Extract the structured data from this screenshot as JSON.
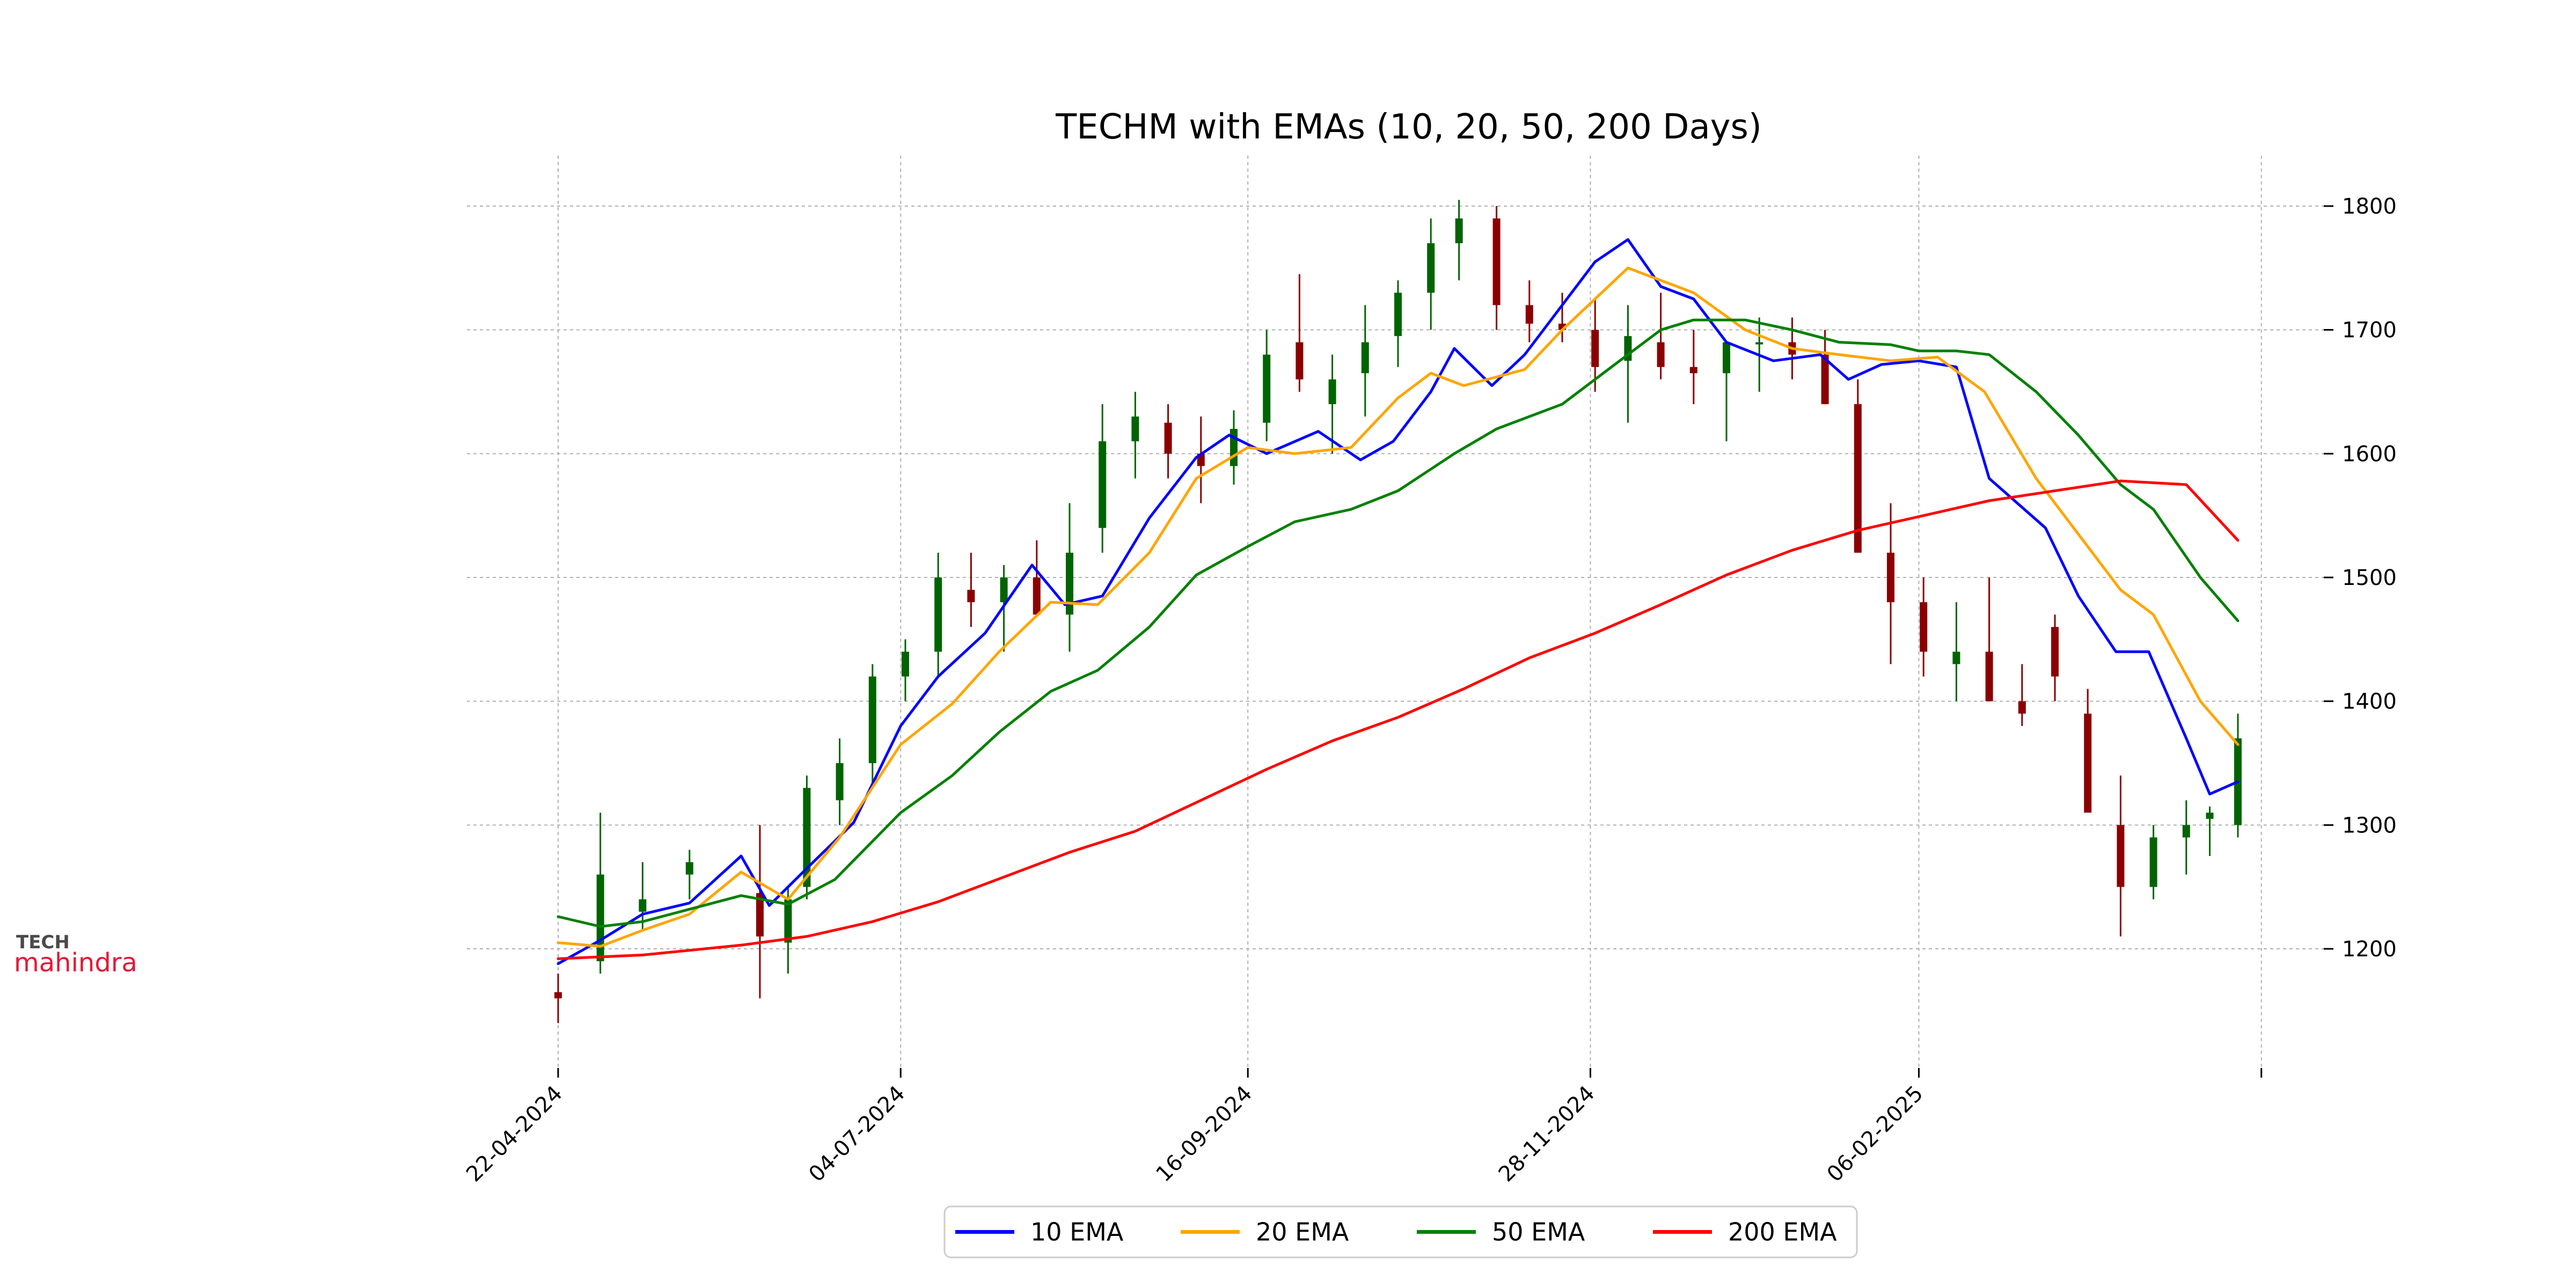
{
  "logo": {
    "line1": "TECH",
    "line2": "mahindra"
  },
  "chart_data": {
    "type": "line",
    "title": "TECHM with EMAs (10, 20, 50, 200 Days)",
    "xlabel": "",
    "ylabel": "",
    "x_range": [
      "2024-04-22",
      "2025-04-15"
    ],
    "x_tick_labels": [
      "22-04-2024",
      "04-07-2024",
      "16-09-2024",
      "28-11-2024",
      "06-02-2025",
      ""
    ],
    "x_tick_dates": [
      "2024-04-22",
      "2024-07-04",
      "2024-09-16",
      "2024-11-28",
      "2025-02-06",
      "2025-04-20"
    ],
    "ylim": [
      1105,
      1840
    ],
    "y_ticks": [
      1200,
      1300,
      1400,
      1500,
      1600,
      1700,
      1800
    ],
    "grid": true,
    "legend_position": "bottom-center",
    "candles": {
      "up_color": "#006400",
      "down_color": "#8b0000",
      "x": [
        "2024-04-22",
        "2024-05-01",
        "2024-05-10",
        "2024-05-20",
        "2024-06-04",
        "2024-06-10",
        "2024-06-14",
        "2024-06-21",
        "2024-06-28",
        "2024-07-05",
        "2024-07-12",
        "2024-07-19",
        "2024-07-26",
        "2024-08-02",
        "2024-08-09",
        "2024-08-16",
        "2024-08-23",
        "2024-08-30",
        "2024-09-06",
        "2024-09-13",
        "2024-09-20",
        "2024-09-27",
        "2024-10-04",
        "2024-10-11",
        "2024-10-18",
        "2024-10-25",
        "2024-10-31",
        "2024-11-08",
        "2024-11-15",
        "2024-11-22",
        "2024-11-29",
        "2024-12-06",
        "2024-12-13",
        "2024-12-20",
        "2024-12-27",
        "2025-01-03",
        "2025-01-10",
        "2025-01-17",
        "2025-01-24",
        "2025-01-31",
        "2025-02-07",
        "2025-02-14",
        "2025-02-21",
        "2025-02-28",
        "2025-03-07",
        "2025-03-14",
        "2025-03-21",
        "2025-03-28",
        "2025-04-04",
        "2025-04-09",
        "2025-04-15"
      ],
      "open": [
        1165,
        1190,
        1230,
        1260,
        1245,
        1205,
        1250,
        1320,
        1350,
        1420,
        1440,
        1490,
        1480,
        1500,
        1470,
        1540,
        1610,
        1625,
        1600,
        1590,
        1625,
        1690,
        1640,
        1665,
        1695,
        1730,
        1770,
        1790,
        1720,
        1705,
        1700,
        1675,
        1690,
        1670,
        1665,
        1690,
        1690,
        1680,
        1640,
        1520,
        1480,
        1430,
        1440,
        1400,
        1460,
        1390,
        1300,
        1250,
        1290,
        1305,
        1300
      ],
      "high": [
        1180,
        1310,
        1270,
        1280,
        1300,
        1250,
        1340,
        1370,
        1430,
        1450,
        1520,
        1520,
        1510,
        1530,
        1560,
        1640,
        1650,
        1640,
        1630,
        1635,
        1700,
        1745,
        1680,
        1720,
        1740,
        1790,
        1805,
        1800,
        1740,
        1730,
        1725,
        1720,
        1730,
        1700,
        1690,
        1710,
        1710,
        1700,
        1660,
        1560,
        1500,
        1480,
        1500,
        1430,
        1470,
        1410,
        1340,
        1300,
        1320,
        1315,
        1390
      ],
      "low": [
        1140,
        1180,
        1215,
        1240,
        1160,
        1180,
        1240,
        1300,
        1330,
        1400,
        1420,
        1460,
        1440,
        1470,
        1440,
        1520,
        1580,
        1580,
        1560,
        1575,
        1610,
        1650,
        1600,
        1630,
        1670,
        1700,
        1740,
        1700,
        1690,
        1690,
        1650,
        1625,
        1660,
        1640,
        1610,
        1650,
        1660,
        1640,
        1520,
        1430,
        1420,
        1400,
        1420,
        1380,
        1400,
        1310,
        1210,
        1240,
        1260,
        1275,
        1290
      ],
      "close": [
        1160,
        1260,
        1240,
        1270,
        1210,
        1240,
        1330,
        1350,
        1420,
        1440,
        1500,
        1480,
        1500,
        1470,
        1520,
        1610,
        1630,
        1600,
        1590,
        1620,
        1680,
        1660,
        1660,
        1690,
        1730,
        1770,
        1790,
        1720,
        1705,
        1700,
        1670,
        1695,
        1670,
        1665,
        1690,
        1690,
        1680,
        1640,
        1520,
        1480,
        1440,
        1440,
        1400,
        1390,
        1420,
        1310,
        1250,
        1290,
        1300,
        1310,
        1370
      ]
    },
    "series": [
      {
        "name": "10 EMA",
        "color": "#0000ff",
        "x": [
          "2024-04-22",
          "2024-05-01",
          "2024-05-10",
          "2024-05-20",
          "2024-05-31",
          "2024-06-06",
          "2024-06-14",
          "2024-06-24",
          "2024-07-04",
          "2024-07-12",
          "2024-07-22",
          "2024-08-01",
          "2024-08-08",
          "2024-08-16",
          "2024-08-26",
          "2024-09-05",
          "2024-09-12",
          "2024-09-20",
          "2024-10-01",
          "2024-10-10",
          "2024-10-17",
          "2024-10-25",
          "2024-10-30",
          "2024-11-07",
          "2024-11-14",
          "2024-11-22",
          "2024-11-29",
          "2024-12-06",
          "2024-12-13",
          "2024-12-20",
          "2024-12-27",
          "2025-01-06",
          "2025-01-16",
          "2025-01-22",
          "2025-01-29",
          "2025-02-06",
          "2025-02-14",
          "2025-02-21",
          "2025-03-05",
          "2025-03-12",
          "2025-03-20",
          "2025-03-27",
          "2025-04-04",
          "2025-04-09",
          "2025-04-15"
        ],
        "values": [
          1188,
          1207,
          1228,
          1237,
          1275,
          1235,
          1265,
          1302,
          1380,
          1420,
          1455,
          1510,
          1478,
          1485,
          1548,
          1597,
          1615,
          1600,
          1618,
          1595,
          1610,
          1650,
          1685,
          1655,
          1680,
          1720,
          1755,
          1773,
          1735,
          1725,
          1690,
          1675,
          1680,
          1660,
          1672,
          1675,
          1670,
          1580,
          1540,
          1485,
          1440,
          1440,
          1370,
          1325,
          1335
        ]
      },
      {
        "name": "20 EMA",
        "color": "#ffa500",
        "x": [
          "2024-04-22",
          "2024-05-01",
          "2024-05-10",
          "2024-05-20",
          "2024-05-31",
          "2024-06-10",
          "2024-06-21",
          "2024-07-04",
          "2024-07-15",
          "2024-07-25",
          "2024-08-05",
          "2024-08-15",
          "2024-08-26",
          "2024-09-05",
          "2024-09-16",
          "2024-09-26",
          "2024-10-08",
          "2024-10-18",
          "2024-10-25",
          "2024-11-01",
          "2024-11-14",
          "2024-11-22",
          "2024-11-29",
          "2024-12-06",
          "2024-12-13",
          "2024-12-20",
          "2024-12-31",
          "2025-01-10",
          "2025-01-20",
          "2025-01-31",
          "2025-02-10",
          "2025-02-20",
          "2025-03-03",
          "2025-03-12",
          "2025-03-21",
          "2025-03-28",
          "2025-04-07",
          "2025-04-15"
        ],
        "values": [
          1205,
          1202,
          1215,
          1228,
          1262,
          1240,
          1290,
          1365,
          1398,
          1440,
          1480,
          1478,
          1520,
          1580,
          1605,
          1600,
          1605,
          1645,
          1665,
          1655,
          1668,
          1700,
          1725,
          1750,
          1740,
          1730,
          1700,
          1685,
          1680,
          1675,
          1678,
          1650,
          1580,
          1535,
          1490,
          1470,
          1400,
          1365
        ]
      },
      {
        "name": "50 EMA",
        "color": "#008000",
        "x": [
          "2024-04-22",
          "2024-05-01",
          "2024-05-10",
          "2024-05-20",
          "2024-05-31",
          "2024-06-10",
          "2024-06-20",
          "2024-07-04",
          "2024-07-15",
          "2024-07-25",
          "2024-08-05",
          "2024-08-15",
          "2024-08-26",
          "2024-09-05",
          "2024-09-16",
          "2024-09-26",
          "2024-10-08",
          "2024-10-18",
          "2024-10-30",
          "2024-11-08",
          "2024-11-22",
          "2024-12-06",
          "2024-12-13",
          "2024-12-20",
          "2024-12-31",
          "2025-01-10",
          "2025-01-20",
          "2025-01-31",
          "2025-02-06",
          "2025-02-14",
          "2025-02-21",
          "2025-03-03",
          "2025-03-12",
          "2025-03-21",
          "2025-03-28",
          "2025-04-07",
          "2025-04-15"
        ],
        "values": [
          1226,
          1218,
          1222,
          1232,
          1243,
          1236,
          1256,
          1310,
          1340,
          1375,
          1408,
          1425,
          1460,
          1502,
          1525,
          1545,
          1555,
          1570,
          1600,
          1620,
          1640,
          1680,
          1700,
          1708,
          1708,
          1700,
          1690,
          1688,
          1683,
          1683,
          1680,
          1650,
          1615,
          1575,
          1555,
          1500,
          1465
        ]
      },
      {
        "name": "200 EMA",
        "color": "#ff0000",
        "x": [
          "2024-04-22",
          "2024-05-10",
          "2024-05-31",
          "2024-06-14",
          "2024-06-28",
          "2024-07-12",
          "2024-07-26",
          "2024-08-09",
          "2024-08-23",
          "2024-09-06",
          "2024-09-20",
          "2024-10-04",
          "2024-10-18",
          "2024-11-01",
          "2024-11-15",
          "2024-11-29",
          "2024-12-13",
          "2024-12-27",
          "2025-01-10",
          "2025-01-24",
          "2025-02-07",
          "2025-02-21",
          "2025-03-07",
          "2025-03-21",
          "2025-04-04",
          "2025-04-15"
        ],
        "values": [
          1192,
          1195,
          1203,
          1210,
          1222,
          1238,
          1258,
          1278,
          1295,
          1320,
          1345,
          1368,
          1387,
          1410,
          1435,
          1455,
          1478,
          1502,
          1522,
          1538,
          1550,
          1562,
          1570,
          1578,
          1575,
          1530
        ]
      }
    ]
  }
}
